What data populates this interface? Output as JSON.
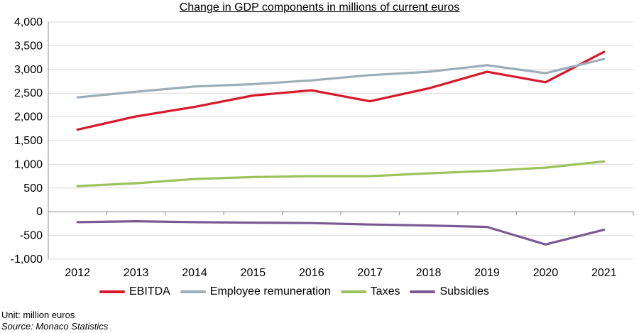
{
  "chart_data": {
    "type": "line",
    "title": "Change in GDP components in millions of current euros",
    "categories": [
      "2012",
      "2013",
      "2014",
      "2015",
      "2016",
      "2017",
      "2018",
      "2019",
      "2020",
      "2021"
    ],
    "ylim": [
      -1000,
      4000
    ],
    "yticks": [
      -1000,
      -500,
      0,
      500,
      1000,
      1500,
      2000,
      2500,
      3000,
      3500,
      4000
    ],
    "ytick_labels": [
      "-1,000",
      "-500",
      "0",
      "500",
      "1,000",
      "1,500",
      "2,000",
      "2,500",
      "3,000",
      "3,500",
      "4,000"
    ],
    "grid": "horizontal",
    "legend_position": "bottom",
    "series": [
      {
        "name": "EBITDA",
        "color": "#d7182a",
        "values": [
          1730,
          2010,
          2210,
          2450,
          2560,
          2330,
          2600,
          2950,
          2730,
          3370
        ]
      },
      {
        "name": "Employee remuneration",
        "color": "#9aadb9",
        "values": [
          2410,
          2530,
          2640,
          2690,
          2770,
          2880,
          2950,
          3090,
          2920,
          3220
        ]
      },
      {
        "name": "Taxes",
        "color": "#9cc25b",
        "values": [
          540,
          600,
          690,
          730,
          750,
          750,
          810,
          860,
          930,
          1060
        ]
      },
      {
        "name": "Subsidies",
        "color": "#7a5a94",
        "values": [
          -220,
          -200,
          -220,
          -230,
          -240,
          -270,
          -290,
          -320,
          -690,
          -380
        ]
      }
    ]
  },
  "footnotes": {
    "unit": "Unit: million euros",
    "source": "Source: Monaco Statistics"
  }
}
